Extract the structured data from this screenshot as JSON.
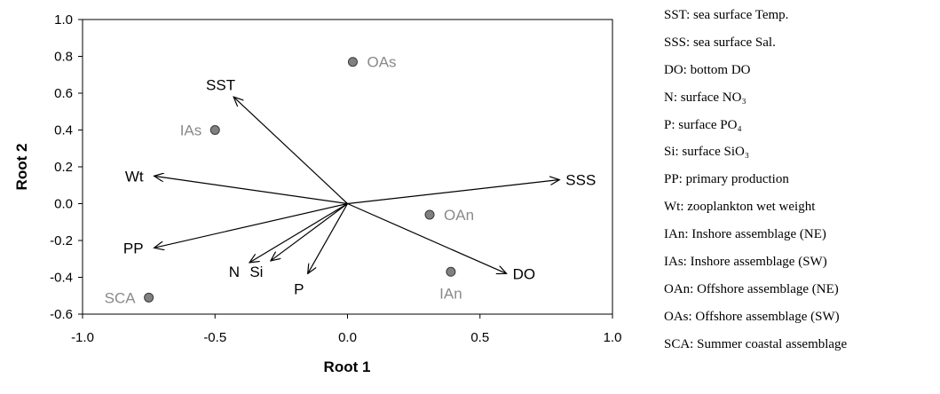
{
  "chart_data": {
    "type": "scatter",
    "xlabel": "Root 1",
    "ylabel": "Root 2",
    "xlim": [
      -1.0,
      1.0
    ],
    "ylim": [
      -0.6,
      1.0
    ],
    "x_ticks": [
      "-1.0",
      "-0.5",
      "0.0",
      "0.5",
      "1.0"
    ],
    "y_ticks": [
      "1.0",
      "0.8",
      "0.6",
      "0.4",
      "0.2",
      "0.0",
      "-0.2",
      "-0.4",
      "-0.6"
    ],
    "grid": false,
    "vectors": [
      {
        "label": "SST",
        "x": -0.43,
        "y": 0.58
      },
      {
        "label": "Wt",
        "x": -0.73,
        "y": 0.15
      },
      {
        "label": "SSS",
        "x": 0.8,
        "y": 0.13
      },
      {
        "label": "PP",
        "x": -0.73,
        "y": -0.24
      },
      {
        "label": "N",
        "x": -0.37,
        "y": -0.32
      },
      {
        "label": "Si",
        "x": -0.29,
        "y": -0.31
      },
      {
        "label": "P",
        "x": -0.15,
        "y": -0.38
      },
      {
        "label": "DO",
        "x": 0.6,
        "y": -0.38
      }
    ],
    "points": [
      {
        "label": "OAs",
        "x": 0.02,
        "y": 0.77
      },
      {
        "label": "IAs",
        "x": -0.5,
        "y": 0.4
      },
      {
        "label": "OAn",
        "x": 0.31,
        "y": -0.06
      },
      {
        "label": "IAn",
        "x": 0.39,
        "y": -0.37
      },
      {
        "label": "SCA",
        "x": -0.75,
        "y": -0.51
      }
    ],
    "colors": {
      "vector": "#000000",
      "point_fill": "#808080",
      "point_stroke": "#3a3a3a",
      "point_label": "#8a8a8a"
    }
  },
  "legend": {
    "items": [
      "SST: sea surface Temp.",
      "SSS: sea surface Sal.",
      "DO: bottom DO",
      "N: surface NO₃",
      "P: surface PO₄",
      "Si: surface SiO₃",
      "PP: primary production",
      "Wt: zooplankton wet weight",
      "IAn: Inshore assemblage (NE)",
      "IAs: Inshore assemblage (SW)",
      "OAn: Offshore assemblage (NE)",
      "OAs: Offshore assemblage (SW)",
      "SCA: Summer coastal assemblage"
    ]
  }
}
